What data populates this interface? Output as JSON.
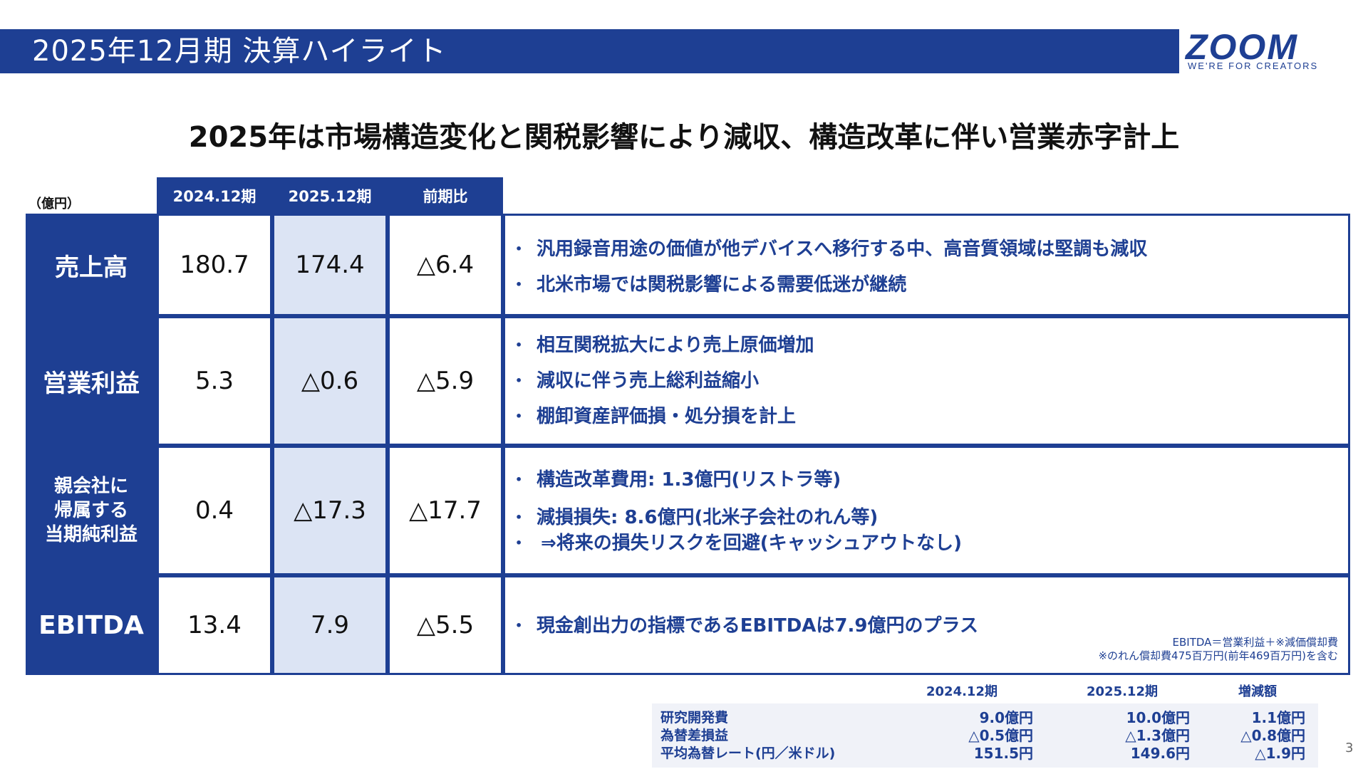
{
  "header": {
    "title": "2025年12月期 決算ハイライト",
    "logo_text": "ZOOM",
    "logo_tagline": "WE'RE FOR CREATORS"
  },
  "headline": "2025年は市場構造変化と関税影響により減収、構造改革に伴い営業赤字計上",
  "table": {
    "unit": "（億円）",
    "columns": [
      "2024.12期",
      "2025.12期",
      "前期比"
    ],
    "rows": [
      {
        "label": "売上高",
        "v2024": "180.7",
        "v2025": "174.4",
        "diff": "△6.4",
        "notes": [
          "汎用録音用途の価値が他デバイスへ移行する中、高音質領域は堅調も減収",
          "北米市場では関税影響による需要低迷が継続"
        ]
      },
      {
        "label": "営業利益",
        "v2024": "5.3",
        "v2025": "△0.6",
        "diff": "△5.9",
        "notes": [
          "相互関税拡大により売上原価増加",
          "減収に伴う売上総利益縮小",
          "棚卸資産評価損・処分損を計上"
        ]
      },
      {
        "label": "親会社に帰属する当期純利益",
        "label_lines": [
          "親会社に",
          "帰属する",
          "当期純利益"
        ],
        "v2024": "0.4",
        "v2025": "△17.3",
        "diff": "△17.7",
        "notes": [
          "構造改革費用: 1.3億円(リストラ等)",
          "減損損失: 8.6億円(北米子会社のれん等)",
          "⇒将来の損失リスクを回避(キャッシュアウトなし)"
        ]
      },
      {
        "label": "EBITDA",
        "v2024": "13.4",
        "v2025": "7.9",
        "diff": "△5.5",
        "notes": [
          "現金創出力の指標であるEBITDAは7.9億円のプラス"
        ]
      }
    ],
    "ebitda_footnote": [
      "EBITDA＝営業利益＋※減価償却費",
      "※のれん償却費475百万円(前年469百万円)を含む"
    ]
  },
  "sub_table": {
    "columns": [
      "2024.12期",
      "2025.12期",
      "増減額"
    ],
    "rows": [
      {
        "label": "研究開発費",
        "v2024": "9.0億円",
        "v2025": "10.0億円",
        "diff": "1.1億円"
      },
      {
        "label": "為替差損益",
        "v2024": "△0.5億円",
        "v2025": "△1.3億円",
        "diff": "△0.8億円"
      },
      {
        "label": "平均為替レート(円／米ドル)",
        "v2024": "151.5円",
        "v2025": "149.6円",
        "diff": "△1.9円"
      }
    ]
  },
  "page_number": "3",
  "colors": {
    "brand_blue": "#1e3f93",
    "highlight": "#dce4f4"
  }
}
